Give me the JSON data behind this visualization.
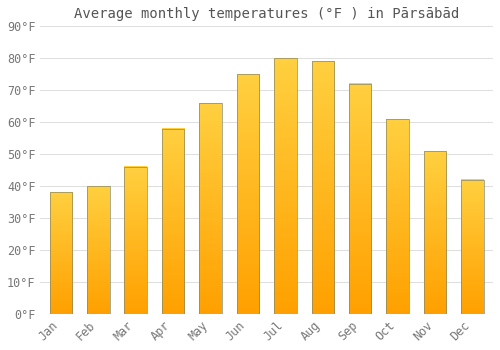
{
  "title": "Average monthly temperatures (°F ) in Pārsābād",
  "months": [
    "Jan",
    "Feb",
    "Mar",
    "Apr",
    "May",
    "Jun",
    "Jul",
    "Aug",
    "Sep",
    "Oct",
    "Nov",
    "Dec"
  ],
  "values": [
    38,
    40,
    46,
    58,
    66,
    75,
    80,
    79,
    72,
    61,
    51,
    42
  ],
  "bar_color_bottom": "#FFD040",
  "bar_color_top": "#FFA000",
  "bar_edge_color": "#888866",
  "bar_edge_width": 0.5,
  "background_color": "#FFFFFF",
  "plot_bg_color": "#FFFFFF",
  "grid_color": "#DDDDDD",
  "ylim": [
    0,
    90
  ],
  "yticks": [
    0,
    10,
    20,
    30,
    40,
    50,
    60,
    70,
    80,
    90
  ],
  "title_fontsize": 10,
  "tick_fontsize": 8.5,
  "title_color": "#555555",
  "tick_color": "#777777",
  "bar_width": 0.6
}
